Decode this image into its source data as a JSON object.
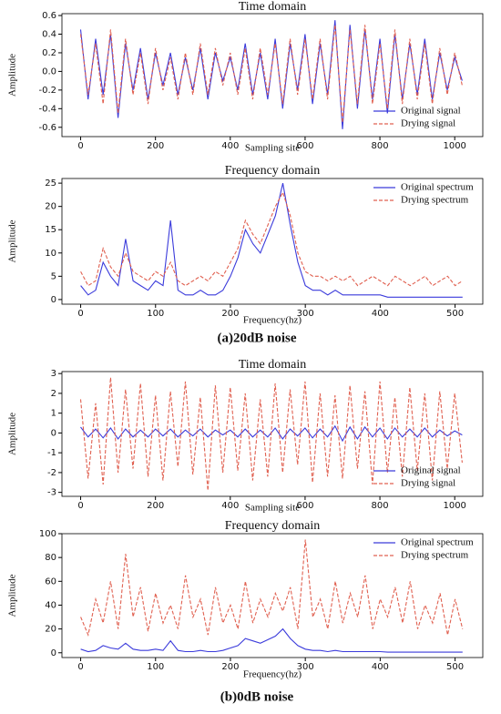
{
  "chart_data": [
    {
      "type": "line",
      "title": "Time domain",
      "xlabel": "Sampling site",
      "ylabel": "Amplitude",
      "legend": "lower right",
      "x": [
        0,
        20,
        40,
        60,
        80,
        100,
        120,
        140,
        160,
        180,
        200,
        220,
        240,
        260,
        280,
        300,
        320,
        340,
        360,
        380,
        400,
        420,
        440,
        460,
        480,
        500,
        520,
        540,
        560,
        580,
        600,
        620,
        640,
        660,
        680,
        700,
        720,
        740,
        760,
        780,
        800,
        820,
        840,
        860,
        880,
        900,
        920,
        940,
        960,
        980,
        1000,
        1020
      ],
      "xlim": [
        -50,
        1075
      ],
      "xticks": [
        0,
        200,
        400,
        600,
        800,
        1000
      ],
      "ylim": [
        -0.7,
        0.62
      ],
      "yticks": [
        -0.6,
        -0.4,
        -0.2,
        {
          "value": 0,
          "label": "0.0"
        },
        0.2,
        0.4,
        0.6
      ],
      "series": [
        {
          "name": "Original signal",
          "color": "#3b3bdb",
          "linestyle": "solid",
          "values": [
            0.45,
            -0.3,
            0.35,
            -0.25,
            0.4,
            -0.5,
            0.3,
            -0.2,
            0.25,
            -0.3,
            0.2,
            -0.15,
            0.2,
            -0.25,
            0.15,
            -0.2,
            0.25,
            -0.3,
            0.2,
            -0.1,
            0.15,
            -0.2,
            0.3,
            -0.25,
            0.2,
            -0.3,
            0.35,
            -0.4,
            0.3,
            -0.2,
            0.4,
            -0.35,
            0.3,
            -0.25,
            0.55,
            -0.62,
            0.5,
            -0.4,
            0.45,
            -0.3,
            0.35,
            -0.45,
            0.4,
            -0.3,
            0.3,
            -0.25,
            0.35,
            -0.3,
            0.2,
            -0.2,
            0.15,
            -0.1
          ]
        },
        {
          "name": "Drying signal",
          "color": "#e06050",
          "linestyle": "dashed",
          "values": [
            0.4,
            -0.25,
            0.3,
            -0.35,
            0.45,
            -0.45,
            0.35,
            -0.25,
            0.2,
            -0.35,
            0.25,
            -0.2,
            0.15,
            -0.3,
            0.2,
            -0.25,
            0.3,
            -0.25,
            0.25,
            -0.15,
            0.2,
            -0.25,
            0.25,
            -0.3,
            0.25,
            -0.25,
            0.3,
            -0.35,
            0.35,
            -0.25,
            0.35,
            -0.3,
            0.35,
            -0.3,
            0.5,
            -0.55,
            0.45,
            -0.35,
            0.5,
            -0.35,
            0.3,
            -0.4,
            0.45,
            -0.35,
            0.35,
            -0.3,
            0.3,
            -0.35,
            0.25,
            -0.25,
            0.2,
            -0.15
          ]
        }
      ]
    },
    {
      "type": "line",
      "title": "Frequency domain",
      "xlabel": "Frequency(hz)",
      "ylabel": "Amplitude",
      "legend": "upper right",
      "x": [
        0,
        10,
        20,
        30,
        40,
        50,
        60,
        70,
        80,
        90,
        100,
        110,
        120,
        130,
        140,
        150,
        160,
        170,
        180,
        190,
        200,
        210,
        220,
        230,
        240,
        250,
        260,
        270,
        280,
        290,
        300,
        310,
        320,
        330,
        340,
        350,
        360,
        370,
        380,
        390,
        400,
        410,
        420,
        430,
        440,
        450,
        460,
        470,
        480,
        490,
        500,
        510
      ],
      "xlim": [
        -25,
        537
      ],
      "xticks": [
        0,
        100,
        200,
        300,
        400,
        500
      ],
      "ylim": [
        -1,
        26
      ],
      "yticks": [
        0,
        5,
        10,
        15,
        20,
        25
      ],
      "series": [
        {
          "name": "Original spectrum",
          "color": "#3b3bdb",
          "linestyle": "solid",
          "values": [
            3,
            1,
            2,
            8,
            5,
            3,
            13,
            4,
            3,
            2,
            4,
            3,
            17,
            2,
            1,
            1,
            2,
            1,
            1,
            2,
            5,
            9,
            15,
            12,
            10,
            14,
            18,
            25,
            16,
            8,
            3,
            2,
            2,
            1,
            2,
            1,
            1,
            1,
            1,
            1,
            1,
            0.5,
            0.5,
            0.5,
            0.5,
            0.5,
            0.5,
            0.5,
            0.5,
            0.5,
            0.5,
            0.5
          ]
        },
        {
          "name": "Drying spectrum",
          "color": "#e06050",
          "linestyle": "dashed",
          "values": [
            6,
            3,
            4,
            11,
            7,
            5,
            10,
            6,
            5,
            4,
            6,
            5,
            8,
            4,
            3,
            4,
            5,
            4,
            6,
            5,
            8,
            11,
            17,
            14,
            12,
            16,
            20,
            23,
            18,
            10,
            6,
            5,
            5,
            4,
            5,
            4,
            5,
            3,
            4,
            5,
            4,
            3,
            5,
            4,
            3,
            4,
            5,
            3,
            4,
            5,
            3,
            4
          ]
        }
      ]
    },
    {
      "type": "line",
      "title": "Time domain",
      "xlabel": "Sampling site",
      "ylabel": "Amplitude",
      "legend": "lower right",
      "x": [
        0,
        20,
        40,
        60,
        80,
        100,
        120,
        140,
        160,
        180,
        200,
        220,
        240,
        260,
        280,
        300,
        320,
        340,
        360,
        380,
        400,
        420,
        440,
        460,
        480,
        500,
        520,
        540,
        560,
        580,
        600,
        620,
        640,
        660,
        680,
        700,
        720,
        740,
        760,
        780,
        800,
        820,
        840,
        860,
        880,
        900,
        920,
        940,
        960,
        980,
        1000,
        1020
      ],
      "xlim": [
        -50,
        1075
      ],
      "xticks": [
        0,
        200,
        400,
        600,
        800,
        1000
      ],
      "ylim": [
        -3.2,
        3.1
      ],
      "yticks": [
        -3,
        -2,
        -1,
        0,
        1,
        2,
        3
      ],
      "series": [
        {
          "name": "Original signal",
          "color": "#3b3bdb",
          "linestyle": "solid",
          "values": [
            0.3,
            -0.2,
            0.2,
            -0.25,
            0.25,
            -0.3,
            0.2,
            -0.2,
            0.15,
            -0.2,
            0.2,
            -0.15,
            0.2,
            -0.2,
            0.15,
            -0.15,
            0.2,
            -0.2,
            0.15,
            -0.1,
            0.15,
            -0.2,
            0.2,
            -0.2,
            0.15,
            -0.2,
            0.25,
            -0.3,
            0.2,
            -0.15,
            0.25,
            -0.25,
            0.2,
            -0.2,
            0.35,
            -0.4,
            0.3,
            -0.3,
            0.3,
            -0.2,
            0.25,
            -0.3,
            0.25,
            -0.2,
            0.2,
            -0.2,
            0.25,
            -0.2,
            0.15,
            -0.15,
            0.1,
            -0.1
          ]
        },
        {
          "name": "Drying signal",
          "color": "#e06050",
          "linestyle": "dashed",
          "values": [
            1.7,
            -2.3,
            1.5,
            -2.6,
            2.8,
            -2.0,
            2.2,
            -1.8,
            2.5,
            -2.2,
            1.9,
            -2.4,
            2.1,
            -1.7,
            2.6,
            -2.1,
            1.8,
            -2.9,
            2.4,
            -2.0,
            2.3,
            -1.9,
            2.0,
            -2.4,
            1.7,
            -2.2,
            2.5,
            -2.0,
            2.2,
            -1.6,
            2.6,
            -2.5,
            2.0,
            -2.2,
            1.9,
            -2.3,
            2.4,
            -1.8,
            2.1,
            -2.6,
            2.6,
            -2.0,
            1.8,
            -2.2,
            2.3,
            -1.9,
            2.0,
            -2.4,
            2.1,
            -1.8,
            2.0,
            -1.5
          ]
        }
      ]
    },
    {
      "type": "line",
      "title": "Frequency domain",
      "xlabel": "Frequency(hz)",
      "ylabel": "Amplitude",
      "legend": "upper right",
      "x": [
        0,
        10,
        20,
        30,
        40,
        50,
        60,
        70,
        80,
        90,
        100,
        110,
        120,
        130,
        140,
        150,
        160,
        170,
        180,
        190,
        200,
        210,
        220,
        230,
        240,
        250,
        260,
        270,
        280,
        290,
        300,
        310,
        320,
        330,
        340,
        350,
        360,
        370,
        380,
        390,
        400,
        410,
        420,
        430,
        440,
        450,
        460,
        470,
        480,
        490,
        500,
        510
      ],
      "xlim": [
        -25,
        537
      ],
      "xticks": [
        0,
        100,
        200,
        300,
        400,
        500
      ],
      "ylim": [
        -4,
        100
      ],
      "yticks": [
        0,
        20,
        40,
        60,
        80,
        100
      ],
      "series": [
        {
          "name": "Original spectrum",
          "color": "#3b3bdb",
          "linestyle": "solid",
          "values": [
            3,
            1,
            2,
            6,
            4,
            3,
            8,
            3,
            2,
            2,
            3,
            2,
            10,
            2,
            1,
            1,
            2,
            1,
            1,
            2,
            4,
            6,
            12,
            10,
            8,
            11,
            14,
            20,
            12,
            6,
            3,
            2,
            2,
            1,
            2,
            1,
            1,
            1,
            1,
            1,
            1,
            0.5,
            0.5,
            0.5,
            0.5,
            0.5,
            0.5,
            0.5,
            0.5,
            0.5,
            0.5,
            0.5
          ]
        },
        {
          "name": "Drying spectrum",
          "color": "#e06050",
          "linestyle": "dashed",
          "values": [
            30,
            15,
            45,
            25,
            60,
            20,
            83,
            30,
            55,
            18,
            50,
            25,
            40,
            20,
            65,
            30,
            45,
            15,
            55,
            25,
            40,
            20,
            60,
            25,
            45,
            30,
            50,
            35,
            55,
            20,
            95,
            30,
            45,
            20,
            60,
            25,
            50,
            30,
            65,
            20,
            45,
            30,
            55,
            25,
            60,
            20,
            40,
            25,
            50,
            15,
            45,
            20
          ]
        }
      ]
    }
  ]
}
